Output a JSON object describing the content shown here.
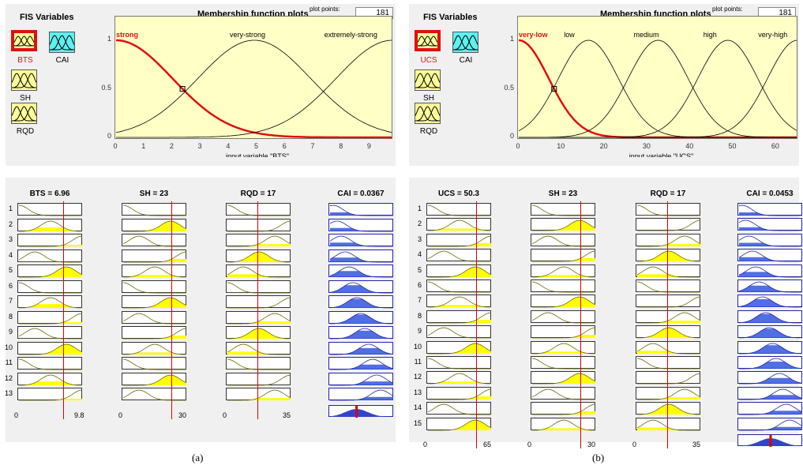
{
  "captions": [
    "(a)",
    "(b)"
  ],
  "panels": [
    {
      "id": "a",
      "fis": {
        "title": "FIS Variables",
        "inputs": [
          {
            "name": "BTS",
            "selected": true
          },
          {
            "name": "SH",
            "selected": false
          },
          {
            "name": "RQD",
            "selected": false
          }
        ],
        "output": {
          "name": "CAI"
        }
      },
      "mfplot": {
        "title": "Membership function plots",
        "plot_points_label": "plot points:",
        "plot_points": "181",
        "range": [
          0,
          9.8
        ],
        "xticks": [
          "0",
          "1",
          "2",
          "3",
          "4",
          "5",
          "6",
          "7",
          "8",
          "9"
        ],
        "yticks": [
          "0",
          "0.5",
          "1"
        ],
        "axis_label": "input variable \"BTS\"",
        "selected_mf": 0,
        "mfs": [
          {
            "name": "strong",
            "center": 0,
            "sigma": 2.0
          },
          {
            "name": "very-strong",
            "center": 4.9,
            "sigma": 2.0
          },
          {
            "name": "extremely-strong",
            "center": 9.8,
            "sigma": 2.0
          }
        ]
      },
      "ruleviewer": {
        "headers": [
          "BTS = 6.96",
          "SH = 23",
          "RQD = 17",
          "CAI = 0.0367"
        ],
        "rules": [
          "1",
          "2",
          "3",
          "4",
          "5",
          "6",
          "7",
          "8",
          "9",
          "10",
          "11",
          "12",
          "13"
        ],
        "bottom_labels": [
          [
            "0",
            "9.8"
          ],
          [
            "0",
            "30"
          ],
          [
            "0",
            "35"
          ]
        ],
        "cursors": [
          0.71,
          0.77,
          0.49
        ],
        "output_cursor": 0.42
      }
    },
    {
      "id": "b",
      "fis": {
        "title": "FIS Variables",
        "inputs": [
          {
            "name": "UCS",
            "selected": true
          },
          {
            "name": "SH",
            "selected": false
          },
          {
            "name": "RQD",
            "selected": false
          }
        ],
        "output": {
          "name": "CAI"
        }
      },
      "mfplot": {
        "title": "Membership function plots",
        "plot_points_label": "plot points:",
        "plot_points": "181",
        "range": [
          0,
          65
        ],
        "xticks": [
          "0",
          "10",
          "20",
          "30",
          "40",
          "50",
          "60"
        ],
        "yticks": [
          "0",
          "0.5",
          "1"
        ],
        "axis_label": "input variable \"UCS\"",
        "selected_mf": 0,
        "mfs": [
          {
            "name": "very-low",
            "center": 0,
            "sigma": 7.0
          },
          {
            "name": "low",
            "center": 16.25,
            "sigma": 7.0
          },
          {
            "name": "medium",
            "center": 32.5,
            "sigma": 7.0
          },
          {
            "name": "high",
            "center": 48.75,
            "sigma": 7.0
          },
          {
            "name": "very-high",
            "center": 65,
            "sigma": 7.0
          }
        ]
      },
      "ruleviewer": {
        "headers": [
          "UCS = 50.3",
          "SH = 23",
          "RQD = 17",
          "CAI = 0.0453"
        ],
        "rules": [
          "1",
          "2",
          "3",
          "4",
          "5",
          "6",
          "7",
          "8",
          "9",
          "10",
          "11",
          "12",
          "13",
          "14",
          "15"
        ],
        "bottom_labels": [
          [
            "0",
            "65"
          ],
          [
            "0",
            "30"
          ],
          [
            "0",
            "35"
          ]
        ],
        "cursors": [
          0.77,
          0.77,
          0.49
        ],
        "output_cursor": 0.5
      }
    }
  ]
}
